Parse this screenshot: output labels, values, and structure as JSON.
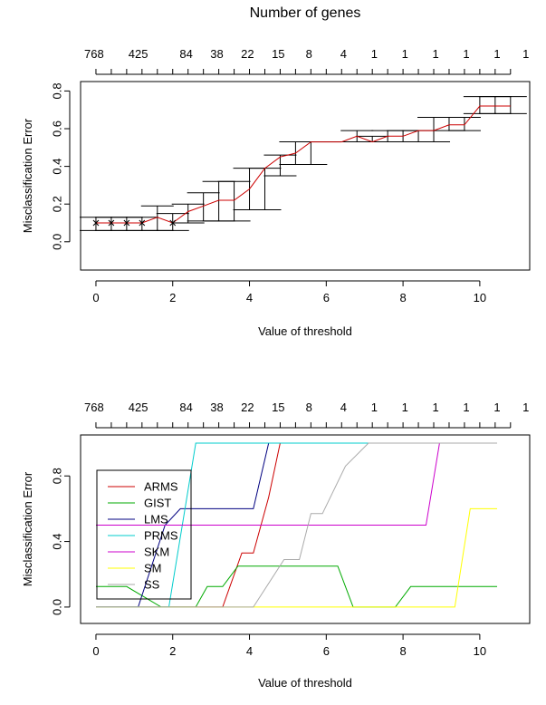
{
  "chart_data": [
    {
      "type": "line",
      "title": "Number of genes",
      "xlabel": "Value of threshold",
      "ylabel": "Misclassification Error",
      "xlim": [
        -0.4,
        11.3
      ],
      "ylim": [
        -0.15,
        0.85
      ],
      "x_ticks": [
        0,
        2,
        4,
        6,
        8,
        10
      ],
      "y_ticks": [
        0.0,
        0.2,
        0.4,
        0.6,
        0.8
      ],
      "top_axis_labels": [
        {
          "x": -0.05,
          "label": "768"
        },
        {
          "x": 1.1,
          "label": "425"
        },
        {
          "x": 2.35,
          "label": "84"
        },
        {
          "x": 3.15,
          "label": "38"
        },
        {
          "x": 3.95,
          "label": "22"
        },
        {
          "x": 4.75,
          "label": "15"
        },
        {
          "x": 5.55,
          "label": "8"
        },
        {
          "x": 6.45,
          "label": "4"
        },
        {
          "x": 7.25,
          "label": "1"
        },
        {
          "x": 8.05,
          "label": "1"
        },
        {
          "x": 8.85,
          "label": "1"
        },
        {
          "x": 9.65,
          "label": "1"
        },
        {
          "x": 10.45,
          "label": "1"
        },
        {
          "x": 11.2,
          "label": "1"
        }
      ],
      "top_tick_positions": [
        0,
        0.4,
        0.8,
        1.2,
        1.6,
        2.0,
        2.4,
        2.8,
        3.2,
        3.6,
        4.0,
        4.4,
        4.8,
        5.2,
        5.6,
        6.0,
        6.4,
        6.8,
        7.2,
        7.6,
        8.0,
        8.4,
        8.8,
        9.2,
        9.6,
        10.0,
        10.4,
        10.8
      ],
      "series": [
        {
          "color": "#cc0000",
          "x": [
            0.0,
            0.4,
            0.8,
            1.2,
            1.6,
            2.0,
            2.4,
            2.8,
            3.2,
            3.6,
            4.0,
            4.4,
            4.8,
            5.2,
            5.6,
            6.0,
            6.4,
            6.8,
            7.2,
            7.6,
            8.0,
            8.4,
            8.8,
            9.2,
            9.6,
            10.0,
            10.4,
            10.8
          ],
          "y": [
            0.1,
            0.1,
            0.1,
            0.1,
            0.13,
            0.1,
            0.16,
            0.19,
            0.22,
            0.22,
            0.28,
            0.39,
            0.45,
            0.47,
            0.53,
            0.53,
            0.53,
            0.56,
            0.53,
            0.56,
            0.56,
            0.59,
            0.59,
            0.62,
            0.62,
            0.72,
            0.72,
            0.72
          ],
          "err_low": [
            0.06,
            0.06,
            0.06,
            0.06,
            0.06,
            0.06,
            0.1,
            0.11,
            0.11,
            0.11,
            0.17,
            0.17,
            0.35,
            0.41,
            0.41,
            0.53,
            0.53,
            0.53,
            0.53,
            0.53,
            0.53,
            0.53,
            0.53,
            0.59,
            0.59,
            0.68,
            0.68,
            0.68
          ],
          "err_high": [
            0.13,
            0.13,
            0.13,
            0.13,
            0.19,
            0.15,
            0.2,
            0.26,
            0.32,
            0.32,
            0.39,
            0.39,
            0.46,
            0.53,
            0.53,
            0.53,
            0.53,
            0.59,
            0.56,
            0.59,
            0.59,
            0.59,
            0.66,
            0.66,
            0.66,
            0.77,
            0.77,
            0.77
          ],
          "point_markers": "x"
        }
      ]
    },
    {
      "type": "line",
      "title": "",
      "xlabel": "Value of threshold",
      "ylabel": "Misclassification Error",
      "xlim": [
        -0.4,
        11.3
      ],
      "ylim": [
        -0.1,
        1.05
      ],
      "x_ticks": [
        0,
        2,
        4,
        6,
        8,
        10
      ],
      "y_ticks": [
        0.0,
        0.4,
        0.8
      ],
      "top_axis_labels": [
        {
          "x": -0.05,
          "label": "768"
        },
        {
          "x": 1.1,
          "label": "425"
        },
        {
          "x": 2.35,
          "label": "84"
        },
        {
          "x": 3.15,
          "label": "38"
        },
        {
          "x": 3.95,
          "label": "22"
        },
        {
          "x": 4.75,
          "label": "15"
        },
        {
          "x": 5.55,
          "label": "8"
        },
        {
          "x": 6.45,
          "label": "4"
        },
        {
          "x": 7.25,
          "label": "1"
        },
        {
          "x": 8.05,
          "label": "1"
        },
        {
          "x": 8.85,
          "label": "1"
        },
        {
          "x": 9.65,
          "label": "1"
        },
        {
          "x": 10.45,
          "label": "1"
        },
        {
          "x": 11.2,
          "label": "1"
        }
      ],
      "top_tick_positions": [
        0,
        0.4,
        0.8,
        1.2,
        1.6,
        2.0,
        2.4,
        2.8,
        3.2,
        3.6,
        4.0,
        4.4,
        4.8,
        5.2,
        5.6,
        6.0,
        6.4,
        6.8,
        7.2,
        7.6,
        8.0,
        8.4,
        8.8,
        9.2,
        9.6,
        10.0,
        10.4,
        10.8
      ],
      "legend": {
        "placement": "top-left",
        "entries": [
          "ARMS",
          "GIST",
          "LMS",
          "PRMS",
          "SKM",
          "SM",
          "SS"
        ]
      },
      "series": [
        {
          "name": "ARMS",
          "color": "#cc0000",
          "x": [
            0,
            3.3,
            3.8,
            4.1,
            4.5,
            4.8,
            10.45
          ],
          "y": [
            0.0,
            0.0,
            0.33,
            0.33,
            0.67,
            1.0,
            1.0
          ]
        },
        {
          "name": "GIST",
          "color": "#00aa00",
          "x": [
            0,
            0.8,
            1.7,
            2.6,
            2.9,
            3.3,
            3.7,
            6.3,
            6.7,
            7.8,
            8.2,
            10.45
          ],
          "y": [
            0.125,
            0.125,
            0.0,
            0.0,
            0.125,
            0.125,
            0.25,
            0.25,
            0.0,
            0.0,
            0.125,
            0.125
          ]
        },
        {
          "name": "LMS",
          "color": "#000080",
          "x": [
            0,
            1.1,
            1.8,
            2.2,
            4.1,
            4.5,
            10.45
          ],
          "y": [
            0.0,
            0.0,
            0.5,
            0.6,
            0.6,
            1.0,
            1.0
          ]
        },
        {
          "name": "PRMS",
          "color": "#00cccc",
          "x": [
            0,
            1.9,
            2.6,
            10.45
          ],
          "y": [
            0.0,
            0.0,
            1.0,
            1.0
          ]
        },
        {
          "name": "SKM",
          "color": "#cc00cc",
          "x": [
            0,
            8.6,
            8.95,
            10.45
          ],
          "y": [
            0.5,
            0.5,
            1.0,
            1.0
          ]
        },
        {
          "name": "SM",
          "color": "#ffff00",
          "x": [
            0,
            9.35,
            9.75,
            10.45
          ],
          "y": [
            0.0,
            0.0,
            0.6,
            0.6
          ]
        },
        {
          "name": "SS",
          "color": "#aaaaaa",
          "x": [
            0,
            4.1,
            4.9,
            5.3,
            5.6,
            5.9,
            6.5,
            7.1,
            10.45
          ],
          "y": [
            0.0,
            0.0,
            0.29,
            0.29,
            0.57,
            0.57,
            0.86,
            1.0,
            1.0
          ]
        }
      ]
    }
  ]
}
